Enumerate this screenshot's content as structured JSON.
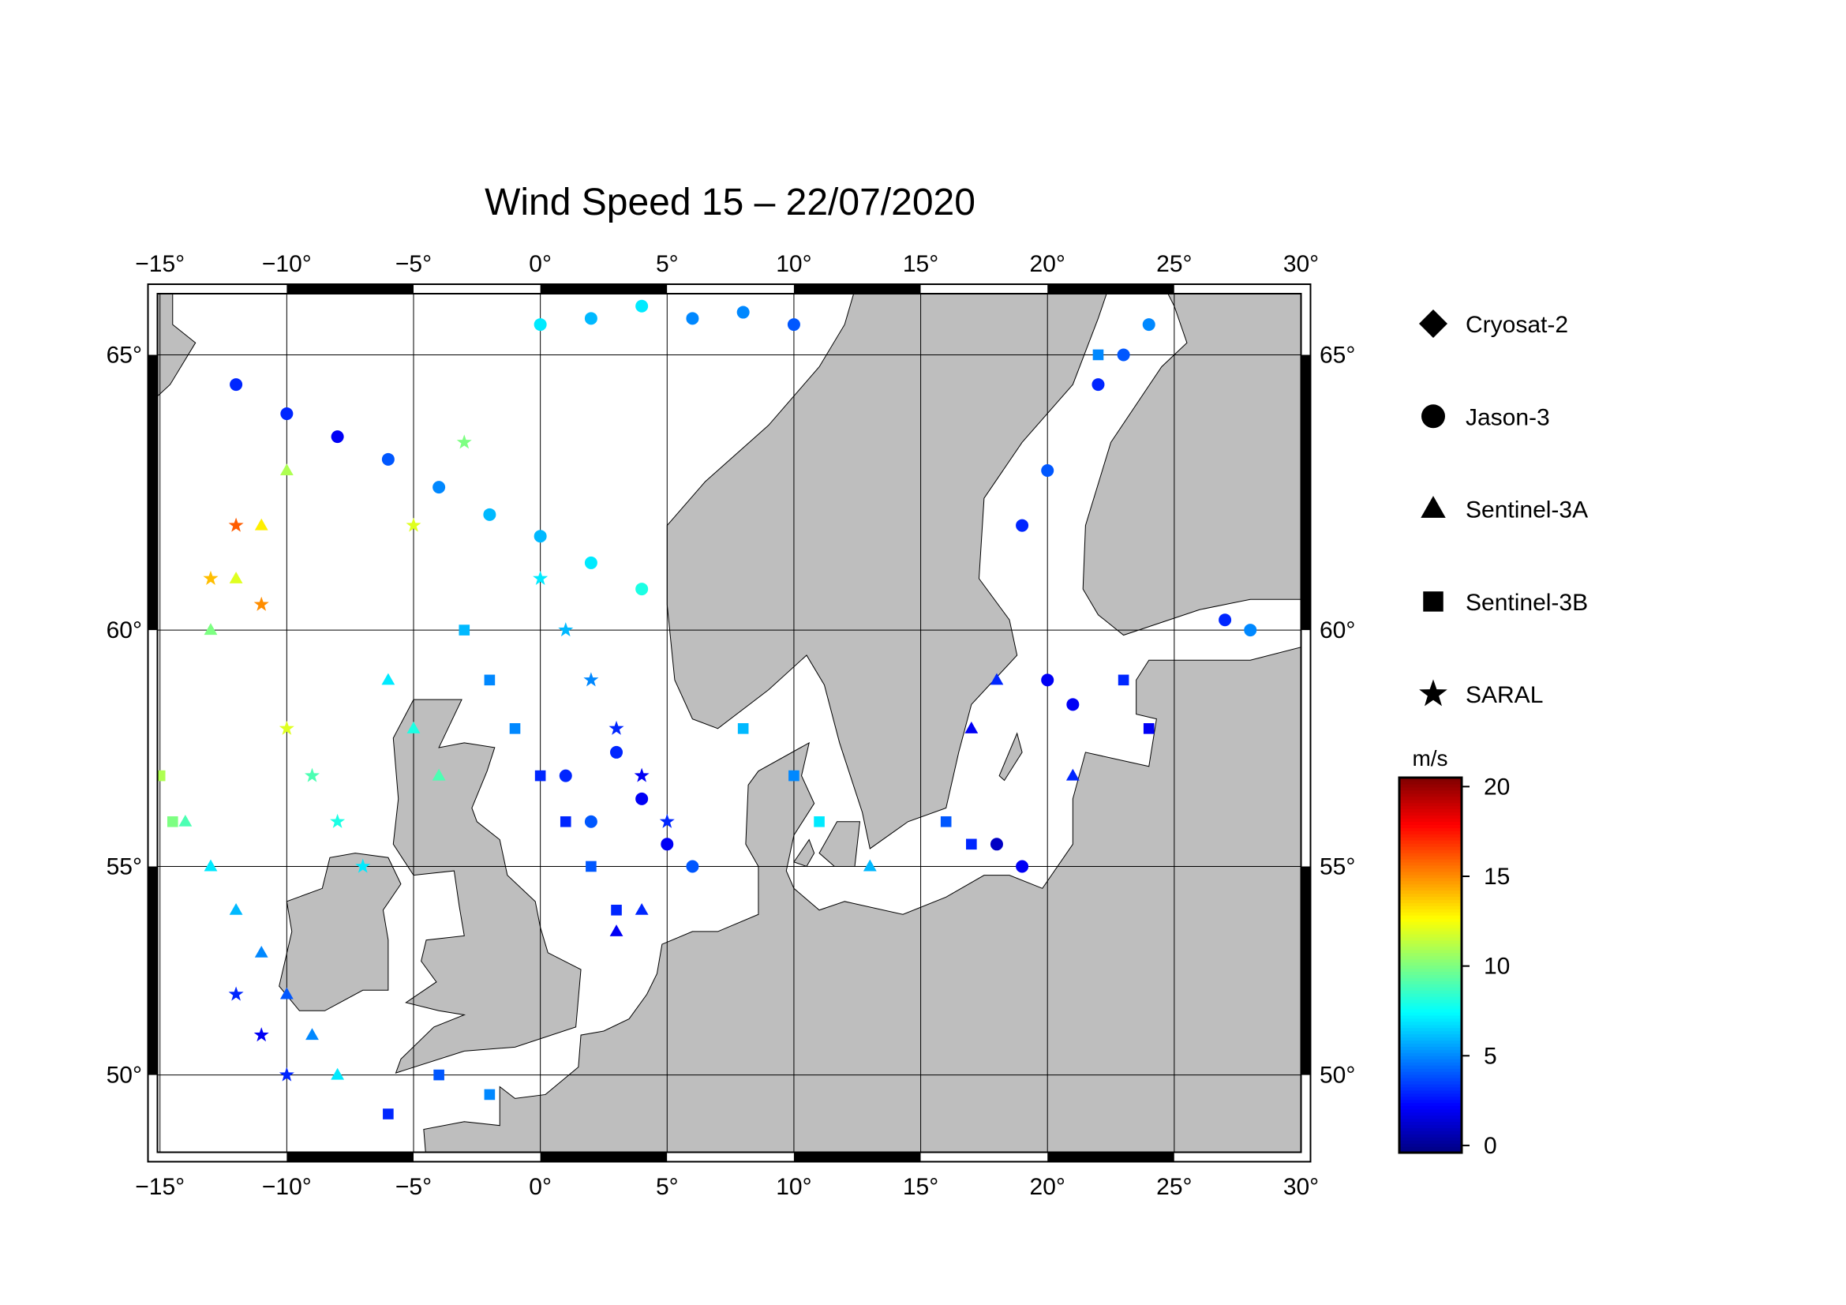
{
  "chart_data": {
    "type": "map",
    "title": "Wind Speed 15 – 22/07/2020",
    "projection": "mercator",
    "xlim": [
      -15.1,
      30
    ],
    "ylim": [
      48,
      66
    ],
    "xticks": [
      {
        "value": -15,
        "label": "−15°"
      },
      {
        "value": -10,
        "label": "−10°"
      },
      {
        "value": -5,
        "label": "−5°"
      },
      {
        "value": 0,
        "label": "0°"
      },
      {
        "value": 5,
        "label": "5°"
      },
      {
        "value": 10,
        "label": "10°"
      },
      {
        "value": 15,
        "label": "15°"
      },
      {
        "value": 20,
        "label": "20°"
      },
      {
        "value": 25,
        "label": "25°"
      },
      {
        "value": 30,
        "label": "30°"
      }
    ],
    "yticks": [
      {
        "value": 50,
        "label": "50°"
      },
      {
        "value": 55,
        "label": "55°"
      },
      {
        "value": 60,
        "label": "60°"
      },
      {
        "value": 65,
        "label": "65°"
      }
    ],
    "grid": true,
    "colorbar": {
      "label": "m/s",
      "cmap": "jet",
      "clim": [
        -0.4,
        20.5
      ],
      "ticks": [
        0,
        5,
        10,
        15,
        20
      ]
    },
    "series": [
      {
        "name": "Cryosat-2",
        "marker": "diamond",
        "lon": [],
        "lat": [],
        "values": []
      },
      {
        "name": "Jason-3",
        "marker": "circle",
        "lon": [
          -12,
          -10,
          -8,
          -6,
          -4,
          -2,
          0,
          2,
          4,
          0,
          2,
          4,
          6,
          8,
          10,
          3,
          4,
          5,
          6,
          2,
          1,
          19,
          20,
          22,
          23,
          24,
          20,
          21,
          18,
          19,
          27,
          28
        ],
        "lat": [
          64.5,
          64,
          63.6,
          63.2,
          62.7,
          62.2,
          61.8,
          61.3,
          60.8,
          65.5,
          65.6,
          65.8,
          65.6,
          65.7,
          65.5,
          57.5,
          56.5,
          55.5,
          55,
          56,
          57,
          62,
          63,
          64.5,
          65,
          65.5,
          59,
          58.5,
          55.5,
          55,
          60.2,
          60
        ],
        "values": [
          3,
          3,
          2,
          4,
          5,
          6,
          6,
          7,
          8,
          7,
          6,
          7,
          5,
          5,
          4,
          3,
          2,
          2,
          4,
          4,
          3,
          3,
          4,
          3,
          4,
          5,
          2,
          2,
          1,
          2,
          3,
          5
        ]
      },
      {
        "name": "Sentinel-3A",
        "marker": "triangle",
        "lon": [
          -14,
          -13,
          -12,
          -11,
          -10,
          -9,
          -8,
          -13,
          -12,
          -11,
          -10,
          -6,
          -5,
          -4,
          3,
          4,
          17,
          18,
          21,
          13
        ],
        "lat": [
          56,
          55,
          54,
          53,
          52,
          51,
          50,
          60,
          61,
          62,
          63,
          59,
          58,
          57,
          53.5,
          54,
          58,
          59,
          57,
          55
        ],
        "values": [
          9,
          7,
          6,
          5,
          4,
          5,
          7,
          10,
          12,
          13,
          11,
          7,
          8,
          9,
          2,
          3,
          2,
          3,
          3,
          6
        ]
      },
      {
        "name": "Sentinel-3B",
        "marker": "square",
        "lon": [
          -15,
          -14.5,
          -3,
          -2,
          -1,
          0,
          1,
          2,
          3,
          8,
          10,
          11,
          16,
          17,
          23,
          24,
          -4,
          -2,
          -6,
          22
        ],
        "lat": [
          57,
          56,
          60,
          59,
          58,
          57,
          56,
          55,
          54,
          58,
          57,
          56,
          56,
          55.5,
          59,
          58,
          50,
          49.5,
          49,
          65
        ],
        "values": [
          11,
          10,
          6,
          5,
          5,
          3,
          3,
          4,
          3,
          6,
          5,
          7,
          4,
          3,
          3,
          2,
          4,
          5,
          3,
          5
        ]
      },
      {
        "name": "SARAL",
        "marker": "star",
        "lon": [
          -13,
          -12,
          -11,
          -10,
          -9,
          -8,
          -7,
          -12,
          -11,
          -10,
          0,
          1,
          2,
          3,
          4,
          5,
          -3,
          -5
        ],
        "lat": [
          61,
          62,
          60.5,
          58,
          57,
          56,
          55,
          52,
          51,
          50,
          61,
          60,
          59,
          58,
          57,
          56,
          63.5,
          62
        ],
        "values": [
          14,
          16,
          15,
          12,
          9,
          8,
          7,
          3,
          2,
          3,
          7,
          6,
          5,
          3,
          2,
          3,
          10,
          12
        ]
      }
    ]
  }
}
